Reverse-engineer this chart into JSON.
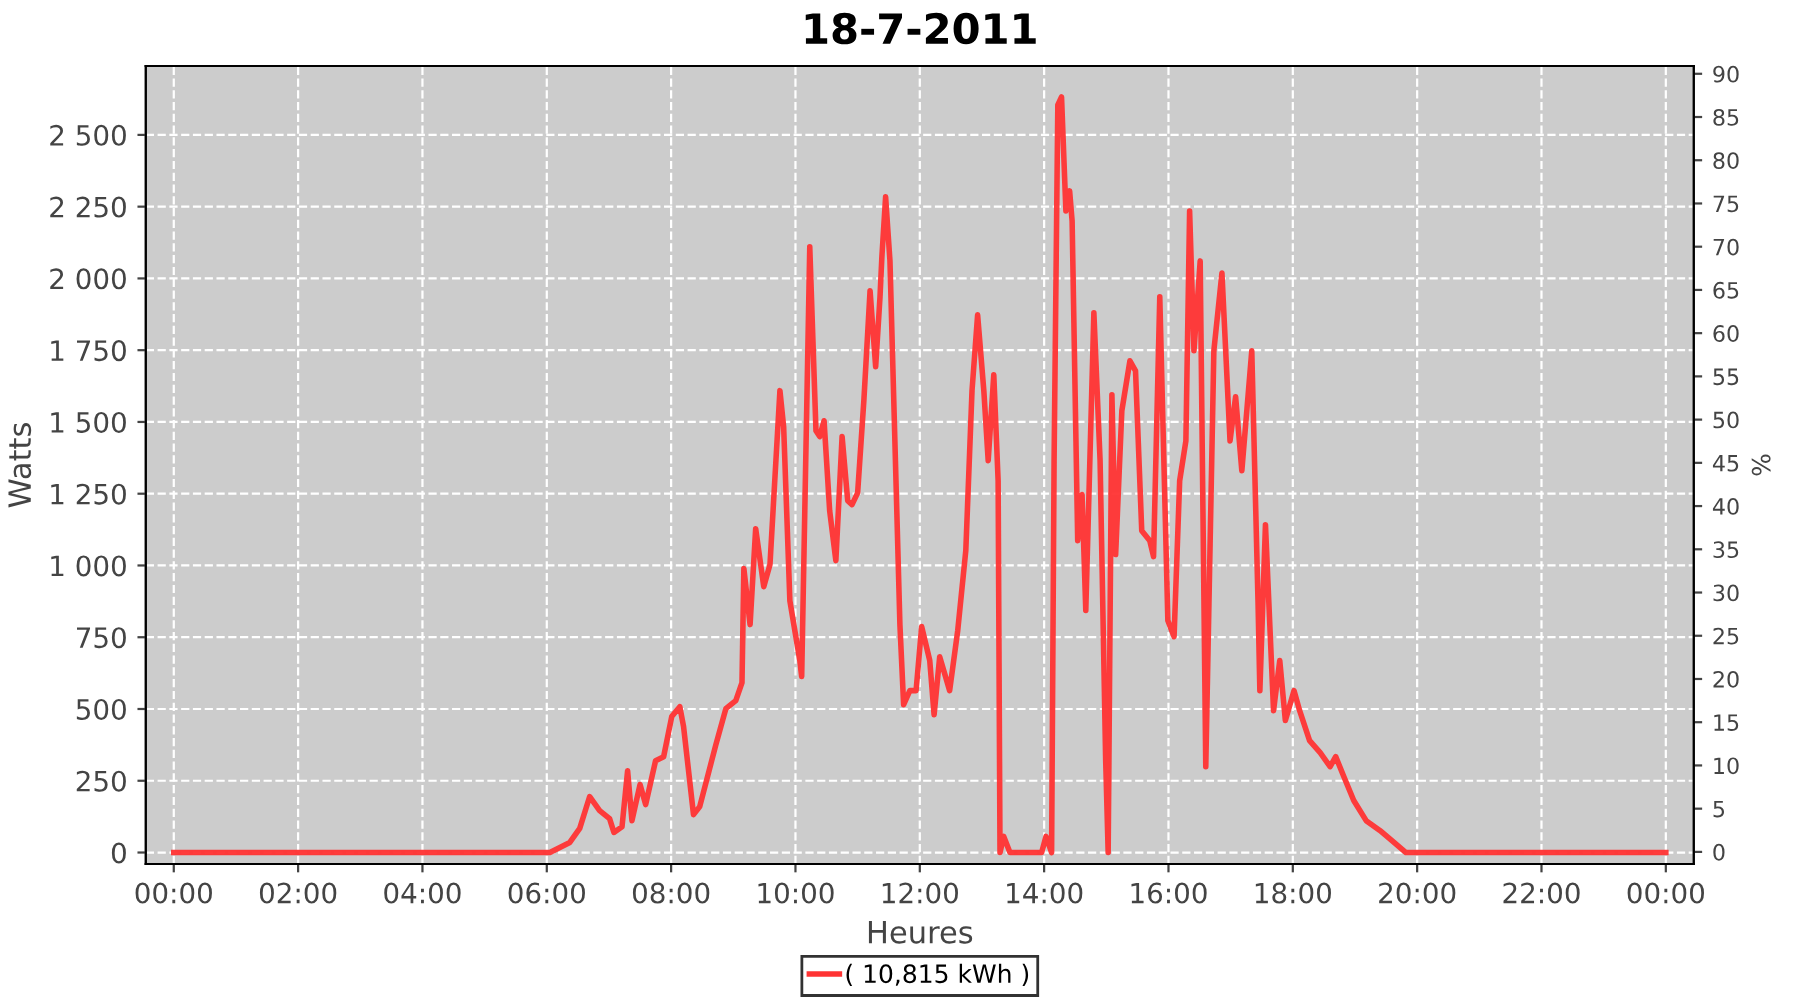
{
  "chart_data": {
    "type": "line",
    "title": "18-7-2011",
    "xlabel": "Heures",
    "ylabel": "Watts",
    "y2label": "%",
    "xlim": [
      -0.45,
      24.45
    ],
    "ylim": [
      -40,
      2740
    ],
    "y2lim": [
      -1.4,
      90.9
    ],
    "xticks": [
      {
        "value": 0,
        "label": "00:00"
      },
      {
        "value": 2,
        "label": "02:00"
      },
      {
        "value": 4,
        "label": "04:00"
      },
      {
        "value": 6,
        "label": "06:00"
      },
      {
        "value": 8,
        "label": "08:00"
      },
      {
        "value": 10,
        "label": "10:00"
      },
      {
        "value": 12,
        "label": "12:00"
      },
      {
        "value": 14,
        "label": "14:00"
      },
      {
        "value": 16,
        "label": "16:00"
      },
      {
        "value": 18,
        "label": "18:00"
      },
      {
        "value": 20,
        "label": "20:00"
      },
      {
        "value": 22,
        "label": "22:00"
      },
      {
        "value": 24,
        "label": "00:00"
      }
    ],
    "yticks": [
      0,
      250,
      500,
      750,
      {
        "value": 1000,
        "label": "1 000"
      },
      {
        "value": 1250,
        "label": "1 250"
      },
      {
        "value": 1500,
        "label": "1 500"
      },
      {
        "value": 1750,
        "label": "1 750"
      },
      {
        "value": 2000,
        "label": "2 000"
      },
      {
        "value": 2250,
        "label": "2 250"
      },
      {
        "value": 2500,
        "label": "2 500"
      }
    ],
    "y2ticks": [
      0,
      5,
      10,
      15,
      20,
      25,
      30,
      35,
      40,
      45,
      50,
      55,
      60,
      65,
      70,
      75,
      80,
      85,
      90
    ],
    "grid": true,
    "legend": "bottom",
    "marker": "none",
    "line_style": "solid",
    "series": [
      {
        "name": "( 10,815 kWh )",
        "color": "#ff3333",
        "x": [
          0,
          6.05,
          6.37,
          6.53,
          6.69,
          6.85,
          7.01,
          7.08,
          7.21,
          7.3,
          7.37,
          7.5,
          7.59,
          7.75,
          7.88,
          8.01,
          8.14,
          8.2,
          8.36,
          8.46,
          8.72,
          8.88,
          9.04,
          9.14,
          9.17,
          9.27,
          9.36,
          9.49,
          9.59,
          9.75,
          9.81,
          9.91,
          10.07,
          10.1,
          10.23,
          10.33,
          10.39,
          10.46,
          10.55,
          10.65,
          10.75,
          10.84,
          10.91,
          11.0,
          11.1,
          11.2,
          11.29,
          11.36,
          11.39,
          11.45,
          11.52,
          11.68,
          11.74,
          11.84,
          11.94,
          12.03,
          12.16,
          12.23,
          12.32,
          12.48,
          12.61,
          12.74,
          12.84,
          12.93,
          13.03,
          13.1,
          13.19,
          13.26,
          13.29,
          13.35,
          13.45,
          13.96,
          14.03,
          14.12,
          14.16,
          14.22,
          14.28,
          14.35,
          14.41,
          14.45,
          14.54,
          14.61,
          14.67,
          14.8,
          14.9,
          14.99,
          15.03,
          15.09,
          15.15,
          15.25,
          15.38,
          15.47,
          15.57,
          15.7,
          15.76,
          15.86,
          15.99,
          16.09,
          16.18,
          16.28,
          16.34,
          16.41,
          16.51,
          16.6,
          16.73,
          16.86,
          16.99,
          17.08,
          17.18,
          17.34,
          17.44,
          17.47,
          17.56,
          17.69,
          17.79,
          17.88,
          18.02,
          18.11,
          18.27,
          18.44,
          18.6,
          18.69,
          18.82,
          18.98,
          19.18,
          19.4,
          19.59,
          19.82,
          24
        ],
        "values": [
          0,
          0,
          35,
          84,
          195,
          146,
          118,
          70,
          90,
          285,
          111,
          237,
          167,
          320,
          334,
          474,
          508,
          439,
          132,
          160,
          376,
          501,
          529,
          592,
          989,
          794,
          1128,
          926,
          1003,
          1609,
          1483,
          877,
          669,
          613,
          2110,
          1469,
          1449,
          1504,
          1191,
          1017,
          1449,
          1226,
          1212,
          1253,
          1574,
          1957,
          1692,
          1936,
          2075,
          2284,
          2061,
          794,
          515,
          564,
          564,
          787,
          669,
          480,
          682,
          564,
          773,
          1052,
          1609,
          1873,
          1609,
          1365,
          1664,
          1295,
          0,
          56,
          0,
          0,
          56,
          0,
          1365,
          2604,
          2632,
          2235,
          2305,
          2200,
          1086,
          1247,
          843,
          1880,
          1365,
          320,
          0,
          1595,
          1038,
          1539,
          1713,
          1678,
          1121,
          1086,
          1031,
          1936,
          808,
          752,
          1295,
          1434,
          2235,
          1748,
          2061,
          299,
          1748,
          2019,
          1434,
          1588,
          1330,
          1748,
          877,
          564,
          1142,
          494,
          669,
          460,
          564,
          494,
          390,
          348,
          299,
          334,
          265,
          181,
          111,
          77,
          42,
          0,
          0
        ]
      }
    ]
  }
}
